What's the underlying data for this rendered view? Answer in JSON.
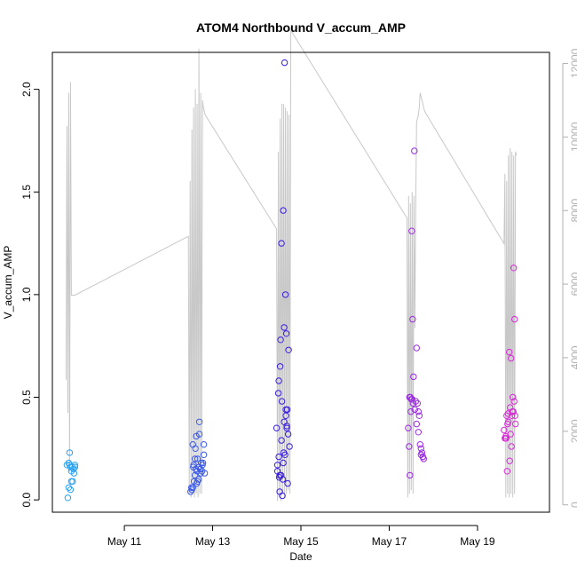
{
  "chart_data": {
    "type": "scatter",
    "title": "ATOM4 Northbound V_accum_AMP",
    "xlabel": "Date",
    "ylabel": "V_accum_AMP",
    "x_ticks": [
      "May 11",
      "May 13",
      "May 15",
      "May 17",
      "May 19"
    ],
    "x_tick_values": [
      11,
      13,
      15,
      17,
      19
    ],
    "xlim": [
      9.37,
      20.63
    ],
    "ylim": [
      -0.06,
      2.18
    ],
    "y_ticks": [
      "0.0",
      "0.5",
      "1.0",
      "1.5",
      "2.0"
    ],
    "y_tick_values": [
      0,
      0.5,
      1.0,
      1.5,
      2.0
    ],
    "right_axis": {
      "ylim": [
        -200,
        12300
      ],
      "ticks": [
        "0",
        "2000",
        "4000",
        "6000",
        "8000",
        "10000",
        "12000"
      ],
      "tick_values": [
        0,
        2000,
        4000,
        6000,
        8000,
        10000,
        12000
      ],
      "color": "#b0b0b0"
    },
    "grid": false,
    "line_series": {
      "color": "#c8c8c8",
      "x": [
        9.68,
        9.7,
        9.72,
        9.74,
        9.76,
        9.78,
        9.8,
        9.82,
        9.84,
        9.86,
        9.88,
        12.45,
        12.47,
        12.49,
        12.51,
        12.53,
        12.55,
        12.57,
        12.59,
        12.61,
        12.63,
        12.65,
        12.67,
        12.69,
        12.71,
        12.73,
        12.75,
        12.77,
        12.79,
        12.81,
        12.83,
        14.45,
        14.47,
        14.49,
        14.51,
        14.53,
        14.55,
        14.57,
        14.59,
        14.61,
        14.63,
        14.65,
        14.67,
        14.69,
        14.71,
        14.73,
        14.75,
        14.77,
        17.4,
        17.42,
        17.44,
        17.46,
        17.48,
        17.5,
        17.52,
        17.54,
        17.56,
        17.58,
        17.6,
        17.62,
        17.64,
        17.66,
        17.68,
        17.7,
        17.72,
        17.74,
        17.76,
        17.78,
        17.8,
        19.6,
        19.62,
        19.64,
        19.66,
        19.68,
        19.7,
        19.72,
        19.74,
        19.76,
        19.78,
        19.8,
        19.82,
        19.84,
        19.86,
        19.88
      ],
      "y": [
        3400,
        10300,
        2500,
        11200,
        900,
        11500,
        5700,
        5700,
        5700,
        5700,
        5700,
        7300,
        300,
        8800,
        200,
        10200,
        300,
        10800,
        200,
        11300,
        300,
        10900,
        200,
        12400,
        300,
        11200,
        300,
        11000,
        10800,
        10700,
        10600,
        7500,
        100,
        9600,
        200,
        10500,
        100,
        10900,
        300,
        10900,
        200,
        10800,
        300,
        10700,
        400,
        10600,
        300,
        12900,
        7800,
        200,
        8400,
        300,
        8200,
        400,
        8500,
        300,
        8400,
        4800,
        8100,
        10400,
        10500,
        10600,
        10800,
        11200,
        11100,
        11000,
        10900,
        10800,
        10700,
        7100,
        9000,
        200,
        8800,
        300,
        9500,
        200,
        9700,
        300,
        9600,
        200,
        9500,
        300,
        9600,
        9500
      ]
    },
    "series": [
      {
        "color": "#2aa2f0",
        "x": [
          9.72,
          9.74,
          9.78,
          9.8,
          9.83,
          9.86,
          9.88,
          9.7,
          9.76,
          9.82,
          9.74,
          9.76,
          9.85,
          9.88,
          9.78,
          9.8
        ],
        "y": [
          0.01,
          0.06,
          0.05,
          0.09,
          0.09,
          0.13,
          0.16,
          0.17,
          0.17,
          0.16,
          0.18,
          0.23,
          0.15,
          0.17,
          0.16,
          0.14
        ]
      },
      {
        "color": "#3b5be6",
        "x": [
          12.5,
          12.53,
          12.55,
          12.58,
          12.6,
          12.62,
          12.64,
          12.66,
          12.68,
          12.7,
          12.72,
          12.74,
          12.76,
          12.78,
          12.8,
          12.82,
          12.55,
          12.57,
          12.6,
          12.63,
          12.66,
          12.7,
          12.73,
          12.77,
          12.8,
          12.52,
          12.56,
          12.61,
          12.65,
          12.69
        ],
        "y": [
          0.04,
          0.05,
          0.06,
          0.09,
          0.12,
          0.15,
          0.08,
          0.2,
          0.1,
          0.38,
          0.15,
          0.18,
          0.14,
          0.18,
          0.27,
          0.13,
          0.27,
          0.17,
          0.2,
          0.31,
          0.09,
          0.32,
          0.13,
          0.17,
          0.22,
          0.06,
          0.16,
          0.25,
          0.14,
          0.16
        ]
      },
      {
        "color": "#3a1ee0",
        "x": [
          14.45,
          14.47,
          14.5,
          14.52,
          14.54,
          14.56,
          14.58,
          14.6,
          14.62,
          14.64,
          14.66,
          14.68,
          14.7,
          14.72,
          14.74,
          14.47,
          14.49,
          14.51,
          14.53,
          14.55,
          14.57,
          14.59,
          14.61,
          14.63,
          14.65,
          14.67,
          14.69,
          14.71,
          14.5,
          14.56,
          14.62,
          14.68,
          14.52,
          14.6,
          14.66
        ],
        "y": [
          0.35,
          0.17,
          0.58,
          0.04,
          0.78,
          1.25,
          0.02,
          1.41,
          0.84,
          0.22,
          0.41,
          0.36,
          0.08,
          0.73,
          0.26,
          0.14,
          0.52,
          0.11,
          0.65,
          0.12,
          0.48,
          0.1,
          0.23,
          2.13,
          1.0,
          0.81,
          0.44,
          0.32,
          0.21,
          0.29,
          0.38,
          0.35,
          0.12,
          0.18,
          0.44
        ]
      },
      {
        "color": "#9b2be0",
        "x": [
          17.43,
          17.45,
          17.47,
          17.49,
          17.51,
          17.53,
          17.55,
          17.57,
          17.6,
          17.62,
          17.64,
          17.66,
          17.68,
          17.7,
          17.72,
          17.74,
          17.76,
          17.78,
          17.46,
          17.5,
          17.54,
          17.58,
          17.62,
          17.66,
          17.72,
          17.76,
          17.48,
          17.52
        ],
        "y": [
          0.35,
          0.26,
          0.12,
          0.43,
          1.31,
          0.88,
          0.6,
          1.7,
          0.48,
          0.74,
          0.47,
          0.43,
          0.41,
          0.27,
          0.25,
          0.23,
          0.21,
          0.2,
          0.5,
          0.49,
          0.47,
          0.44,
          0.37,
          0.33,
          0.22,
          0.21,
          0.5,
          0.49
        ]
      },
      {
        "color": "#d62ad6",
        "x": [
          19.6,
          19.63,
          19.65,
          19.67,
          19.7,
          19.72,
          19.74,
          19.76,
          19.78,
          19.8,
          19.82,
          19.84,
          19.86,
          19.62,
          19.66,
          19.69,
          19.73,
          19.77,
          19.81,
          19.85,
          19.64,
          19.68,
          19.75,
          19.79,
          19.83
        ],
        "y": [
          0.34,
          0.3,
          0.3,
          0.14,
          0.38,
          0.72,
          0.45,
          0.69,
          0.41,
          0.5,
          1.13,
          0.88,
          0.37,
          0.3,
          0.41,
          0.42,
          0.19,
          0.26,
          0.43,
          0.41,
          0.31,
          0.37,
          0.32,
          0.43,
          0.48
        ]
      }
    ]
  }
}
